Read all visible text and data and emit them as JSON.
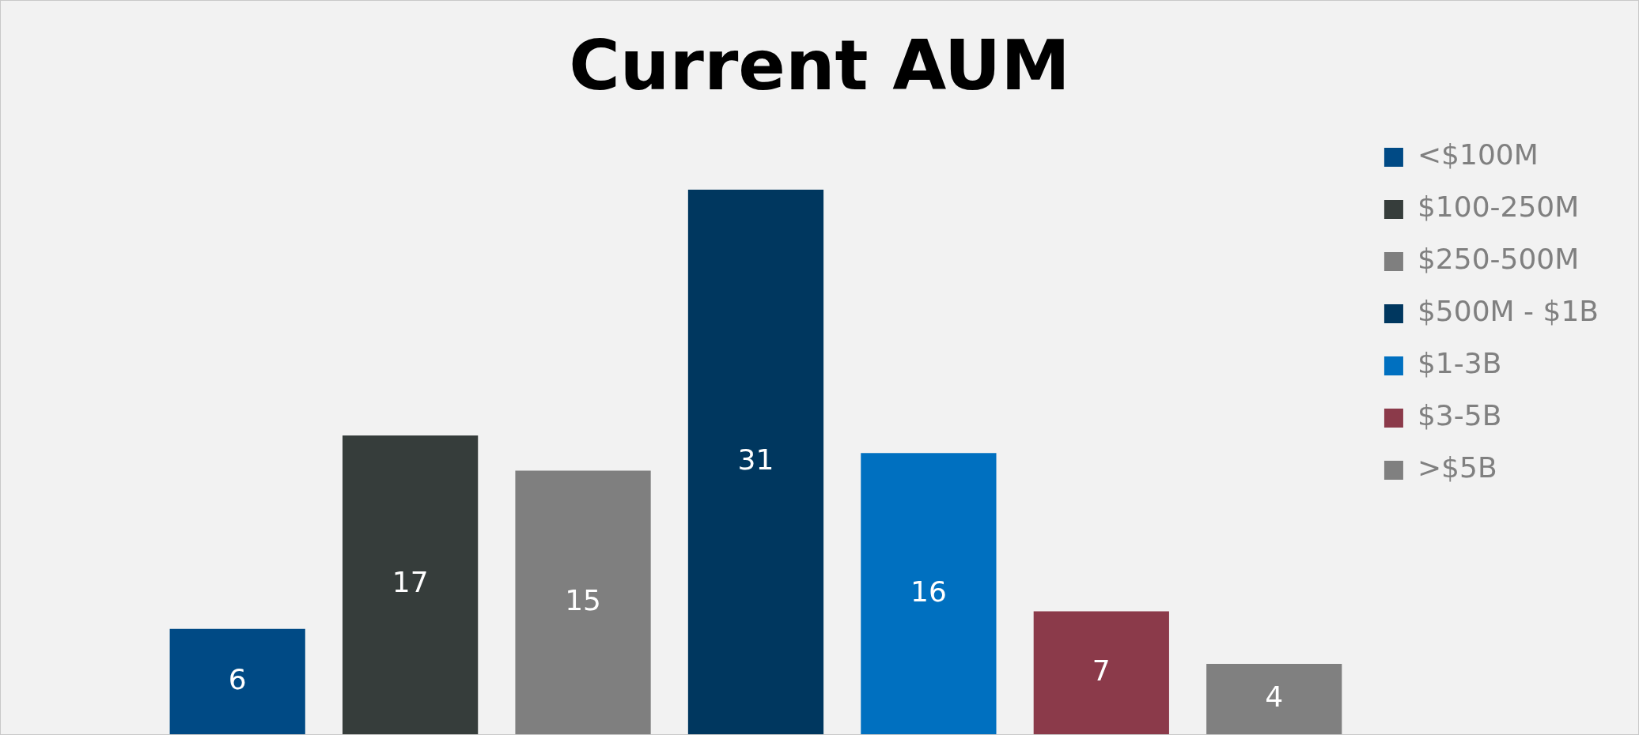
{
  "chart_data": {
    "type": "bar",
    "title": "Current AUM",
    "categories": [
      null,
      null,
      null,
      null,
      null,
      null,
      null
    ],
    "stacked": true,
    "series": [
      {
        "name": "<$100M",
        "color": "#004a85",
        "values": [
          6,
          null,
          null,
          null,
          null,
          null,
          null
        ]
      },
      {
        "name": "$100-250M",
        "color": "#363d3b",
        "values": [
          null,
          17,
          null,
          null,
          null,
          null,
          null
        ]
      },
      {
        "name": "$250-500M",
        "color": "#7f7f7f",
        "values": [
          null,
          null,
          15,
          null,
          null,
          null,
          null
        ]
      },
      {
        "name": "$500M - $1B",
        "color": "#00375f",
        "values": [
          null,
          null,
          null,
          31,
          null,
          null,
          null
        ]
      },
      {
        "name": "$1-3B",
        "color": "#0070c0",
        "values": [
          null,
          null,
          null,
          null,
          16,
          null,
          null
        ]
      },
      {
        "name": "$3-5B",
        "color": "#8b3a4a",
        "values": [
          null,
          null,
          null,
          null,
          null,
          7,
          null
        ]
      },
      {
        "name": ">$5B",
        "color": "#808080",
        "values": [
          null,
          null,
          null,
          null,
          null,
          null,
          4
        ]
      }
    ],
    "data_labels": true,
    "legend": "right",
    "tick_labels": false
  }
}
